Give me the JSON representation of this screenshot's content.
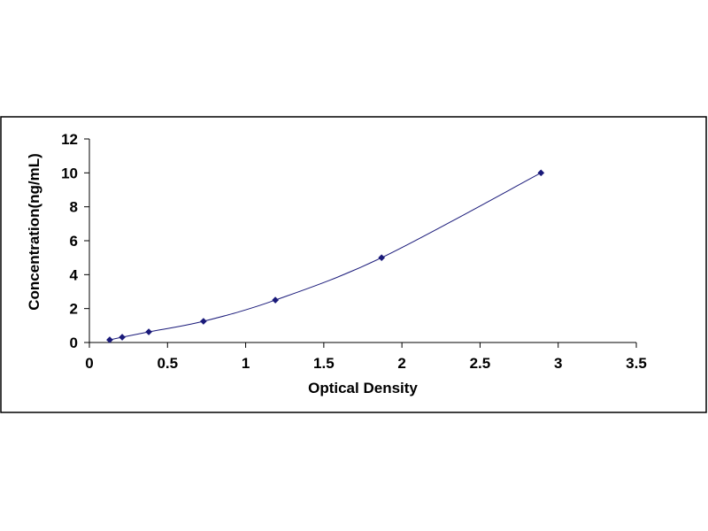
{
  "chart_data": {
    "type": "scatter",
    "title": "",
    "xlabel": "Optical Density",
    "ylabel": "Concentration(ng/mL)",
    "xlim": [
      0,
      3.5
    ],
    "ylim": [
      0,
      12
    ],
    "x_ticks": [
      "0",
      "0.5",
      "1",
      "1.5",
      "2",
      "2.5",
      "3",
      "3.5"
    ],
    "y_ticks": [
      "0",
      "2",
      "4",
      "6",
      "8",
      "10",
      "12"
    ],
    "grid": false,
    "legend": "none",
    "series": [
      {
        "x": [
          0.13,
          0.21,
          0.38,
          0.73,
          1.19,
          1.87,
          2.89
        ],
        "y": [
          0.156,
          0.312,
          0.625,
          1.25,
          2.5,
          5,
          10
        ]
      }
    ],
    "trendline": "smooth curve through points",
    "colors": {
      "marker": "#1a1a7a",
      "line": "#1a1a7a",
      "axis": "#000000",
      "frame": "#000000"
    }
  }
}
